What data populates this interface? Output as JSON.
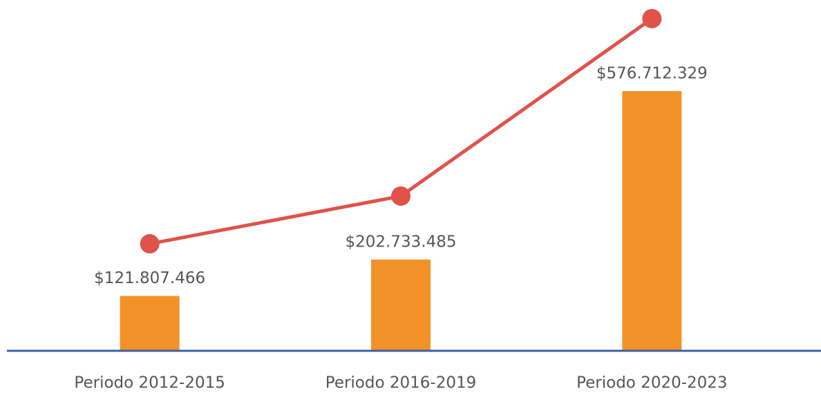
{
  "chart_data": {
    "type": "bar",
    "categories": [
      "Periodo 2012-2015",
      "Periodo 2016-2019",
      "Periodo 2020-2023"
    ],
    "series": [
      {
        "type": "bar",
        "color": "#f39129",
        "values": [
          121807466,
          202733485,
          576712329
        ],
        "value_labels": [
          "$121.807.466",
          "$202.733.485",
          "$576.712.329"
        ]
      },
      {
        "type": "line",
        "color": "#e0524a",
        "values": [
          237700000,
          343600000,
          737800000
        ]
      }
    ],
    "ylim": [
      0,
      760000000
    ],
    "axis_color": "#3b5fa8"
  }
}
